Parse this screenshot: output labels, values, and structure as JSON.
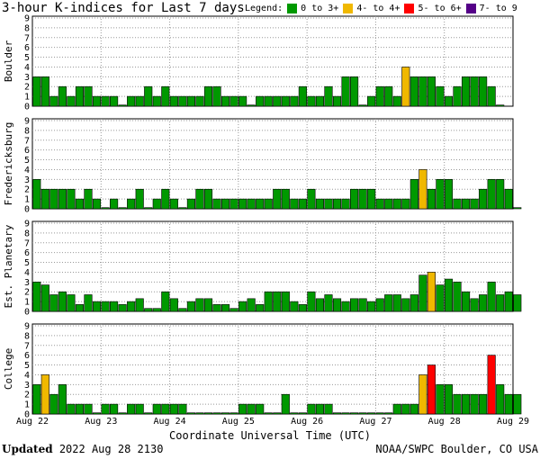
{
  "header": {
    "title": "3-hour K-indices for Last 7 days",
    "legend_label": "Legend:"
  },
  "legend": [
    {
      "label": "0 to 3+",
      "color": "#009900"
    },
    {
      "label": "4- to 4+",
      "color": "#f0b800"
    },
    {
      "label": "5- to 6+",
      "color": "#ff0000"
    },
    {
      "label": "7- to 9",
      "color": "#550088"
    }
  ],
  "footer": {
    "x_axis_title": "Coordinate Universal Time (UTC)",
    "updated_label": "Updated",
    "updated_value": "2022 Aug 28 2130",
    "credit": "NOAA/SWPC Boulder, CO USA"
  },
  "chart_data": {
    "type": "bar",
    "x_tick_labels": [
      "Aug 22",
      "Aug 23",
      "Aug 24",
      "Aug 25",
      "Aug 26",
      "Aug 27",
      "Aug 28",
      "Aug 29"
    ],
    "y_tick_labels": [
      "0",
      "1",
      "2",
      "3",
      "4",
      "5",
      "6",
      "7",
      "8",
      "9"
    ],
    "ylim": [
      0,
      9
    ],
    "bins_per_day": 8,
    "panels": [
      {
        "name": "Boulder",
        "values": [
          3,
          3,
          1,
          2,
          1,
          2,
          2,
          1,
          1,
          1,
          0,
          1,
          1,
          2,
          1,
          2,
          1,
          1,
          1,
          1,
          2,
          2,
          1,
          1,
          1,
          0,
          1,
          1,
          1,
          1,
          1,
          2,
          1,
          1,
          2,
          1,
          3,
          3,
          0,
          1,
          2,
          2,
          1,
          4,
          3,
          3,
          3,
          2,
          1,
          2,
          3,
          3,
          3,
          2,
          0
        ]
      },
      {
        "name": "Fredericksburg",
        "values": [
          3,
          2,
          2,
          2,
          2,
          1,
          2,
          1,
          0,
          1,
          0,
          1,
          2,
          0,
          1,
          2,
          1,
          0,
          1,
          2,
          2,
          1,
          1,
          1,
          1,
          1,
          1,
          1,
          2,
          2,
          1,
          1,
          2,
          1,
          1,
          1,
          1,
          2,
          2,
          2,
          1,
          1,
          1,
          1,
          3,
          4,
          2,
          3,
          3,
          1,
          1,
          1,
          2,
          3,
          3,
          2,
          0
        ]
      },
      {
        "name": "Est. Planetary",
        "values": [
          3,
          2.7,
          1.7,
          2,
          1.7,
          0.7,
          1.7,
          1,
          1,
          1,
          0.7,
          1,
          1.3,
          0.3,
          0.3,
          2,
          1.3,
          0.3,
          1,
          1.3,
          1.3,
          0.7,
          0.7,
          0.3,
          1,
          1.3,
          0.7,
          2,
          2,
          2,
          1,
          0.7,
          2,
          1.3,
          1.7,
          1.3,
          1,
          1.3,
          1.3,
          1,
          1.3,
          1.7,
          1.7,
          1.3,
          1.7,
          3.7,
          4,
          2.7,
          3.3,
          3,
          2,
          1.3,
          1.7,
          3,
          1.7,
          2,
          1.7
        ]
      },
      {
        "name": "College",
        "values": [
          3,
          4,
          2,
          3,
          1,
          1,
          1,
          0,
          1,
          1,
          0,
          1,
          1,
          0,
          1,
          1,
          1,
          1,
          0,
          0,
          0,
          0,
          0,
          0,
          1,
          1,
          1,
          0,
          0,
          2,
          0,
          0,
          1,
          1,
          1,
          0,
          0,
          0,
          0,
          0,
          0,
          0,
          1,
          1,
          1,
          4,
          5,
          3,
          3,
          2,
          2,
          2,
          2,
          6,
          3,
          2,
          2
        ]
      }
    ]
  }
}
